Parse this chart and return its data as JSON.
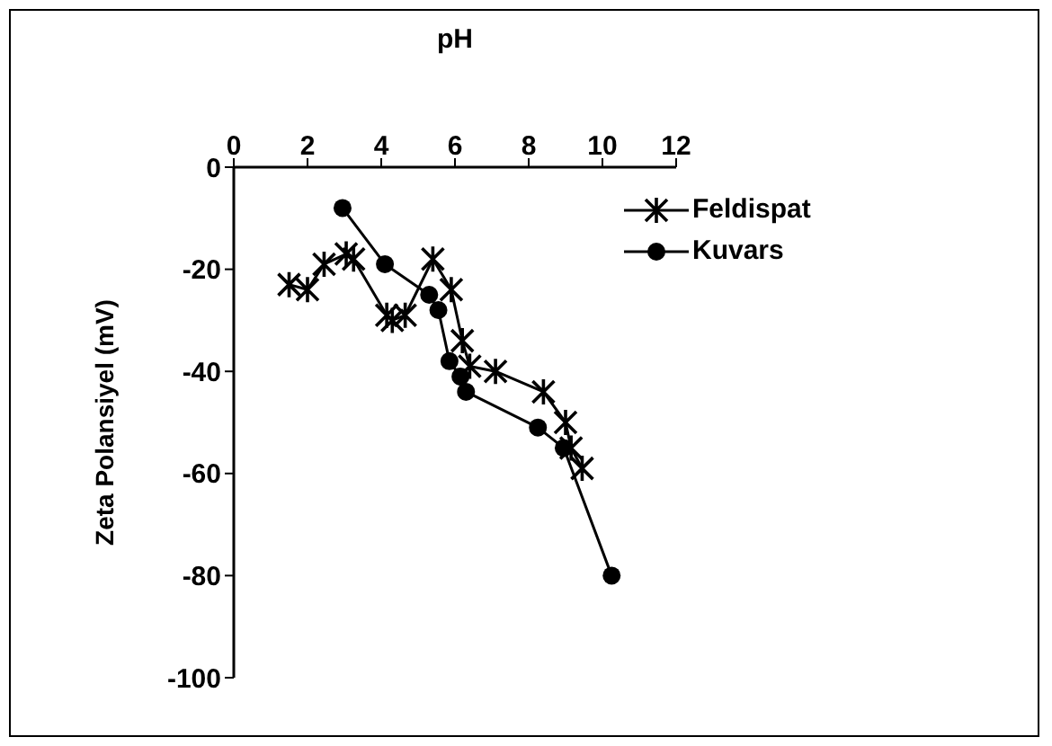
{
  "chart_data": {
    "type": "line",
    "xlabel": "pH",
    "ylabel": "Zeta Polansiyel (mV)",
    "xlim": [
      0,
      12
    ],
    "xticks": [
      0,
      2,
      4,
      6,
      8,
      10,
      12
    ],
    "ylim": [
      -100,
      0
    ],
    "yticks": [
      -100,
      -80,
      -60,
      -40,
      -20,
      0
    ],
    "legend": "top right",
    "grid": false,
    "series": [
      {
        "name": "Feldispat",
        "color": "#000000",
        "marker": "cross",
        "x": [
          1.5,
          2.0,
          2.45,
          3.05,
          3.25,
          4.15,
          4.3,
          4.65,
          5.4,
          5.9,
          6.2,
          6.4,
          7.1,
          8.4,
          9.0,
          9.15,
          9.45
        ],
        "values": [
          -23,
          -24,
          -19,
          -17,
          -18,
          -29,
          -30,
          -29,
          -18,
          -24,
          -34,
          -39,
          -40,
          -44,
          -50,
          -55,
          -59
        ]
      },
      {
        "name": "Kuvars",
        "color": "#000000",
        "marker": "circle",
        "x": [
          2.95,
          4.1,
          5.3,
          5.55,
          5.85,
          6.15,
          6.3,
          8.25,
          8.95,
          10.25
        ],
        "values": [
          -8,
          -19,
          -25,
          -28,
          -38,
          -41,
          -44,
          -51,
          -55,
          -80
        ]
      }
    ]
  }
}
